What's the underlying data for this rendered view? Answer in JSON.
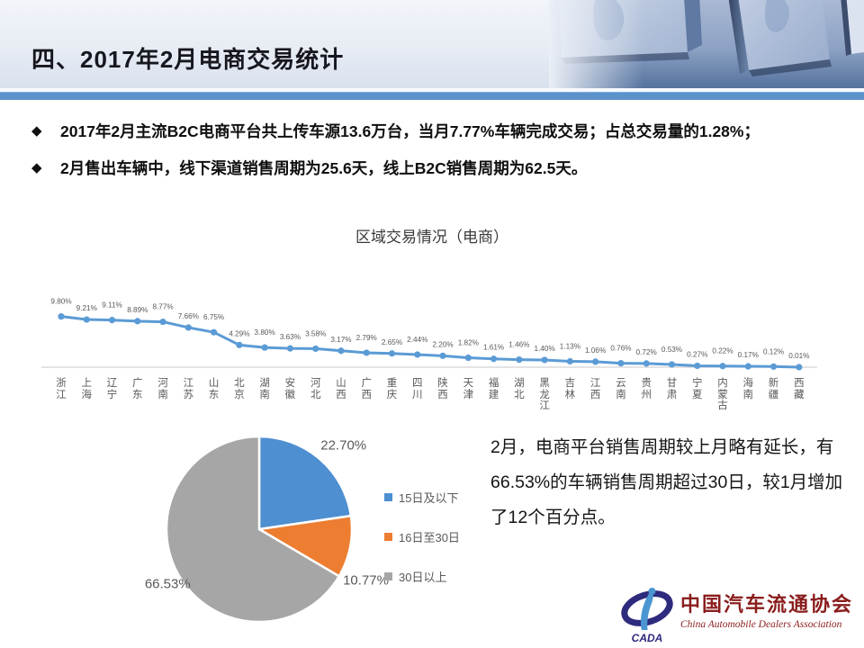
{
  "slide": {
    "title": "四、2017年2月电商交易统计",
    "bullet_marker": "◆",
    "bullets": [
      "2017年2月主流B2C电商平台共上传车源13.6万台，当月7.77%车辆完成交易；占总交易量的1.28%；",
      "2月售出车辆中，线下渠道销售周期为25.6天，线上B2C销售周期为62.5天。"
    ]
  },
  "chart_data": [
    {
      "type": "line",
      "title": "区域交易情况（电商）",
      "categories": [
        "浙江",
        "上海",
        "辽宁",
        "广东",
        "河南",
        "江苏",
        "山东",
        "北京",
        "湖南",
        "安徽",
        "河北",
        "山西",
        "广西",
        "重庆",
        "四川",
        "陕西",
        "天津",
        "福建",
        "湖北",
        "黑龙江",
        "吉林",
        "江西",
        "云南",
        "贵州",
        "甘肃",
        "宁夏",
        "内蒙古",
        "海南",
        "新疆",
        "西藏"
      ],
      "values": [
        9.8,
        9.21,
        9.11,
        8.89,
        8.77,
        7.66,
        6.75,
        4.29,
        3.8,
        3.63,
        3.58,
        3.17,
        2.79,
        2.65,
        2.44,
        2.2,
        1.82,
        1.61,
        1.46,
        1.4,
        1.13,
        1.06,
        0.76,
        0.72,
        0.53,
        0.27,
        0.22,
        0.17,
        0.12,
        0.01
      ],
      "value_suffix": "%",
      "xlabel": "",
      "ylabel": "",
      "ylim": [
        0,
        10
      ],
      "grid": false,
      "legend_position": "none",
      "line_color": "#5B9BD5",
      "label_color": "#595959",
      "axis_color": "#C9C9C9"
    },
    {
      "type": "pie",
      "title": "",
      "start_angle_deg": 0,
      "direction": "clockwise",
      "legend_position": "right",
      "slices": [
        {
          "label": "15日及以下",
          "value": 22.7,
          "color": "#4E8FD1"
        },
        {
          "label": "16日至30日",
          "value": 10.77,
          "color": "#ED7D31"
        },
        {
          "label": "30日以上",
          "value": 66.53,
          "color": "#A6A6A6"
        }
      ],
      "label_suffix": "%"
    }
  ],
  "annotation": "2月，电商平台销售周期较上月略有延长，有66.53%的车辆销售周期超过30日，较1月增加了12个百分点。",
  "footer_logo": {
    "acronym": "CADA",
    "cn": "中国汽车流通协会",
    "en": "China Automobile Dealers Association"
  },
  "colors": {
    "divider_blue": "#5B92CB",
    "line_blue": "#5B9BD5",
    "pie_blue": "#4E8FD1",
    "pie_orange": "#ED7D31",
    "pie_gray": "#A6A6A6",
    "text_gray": "#595959",
    "logo_red": "#8A1D1D",
    "logo_indigo": "#2E2A7E"
  }
}
